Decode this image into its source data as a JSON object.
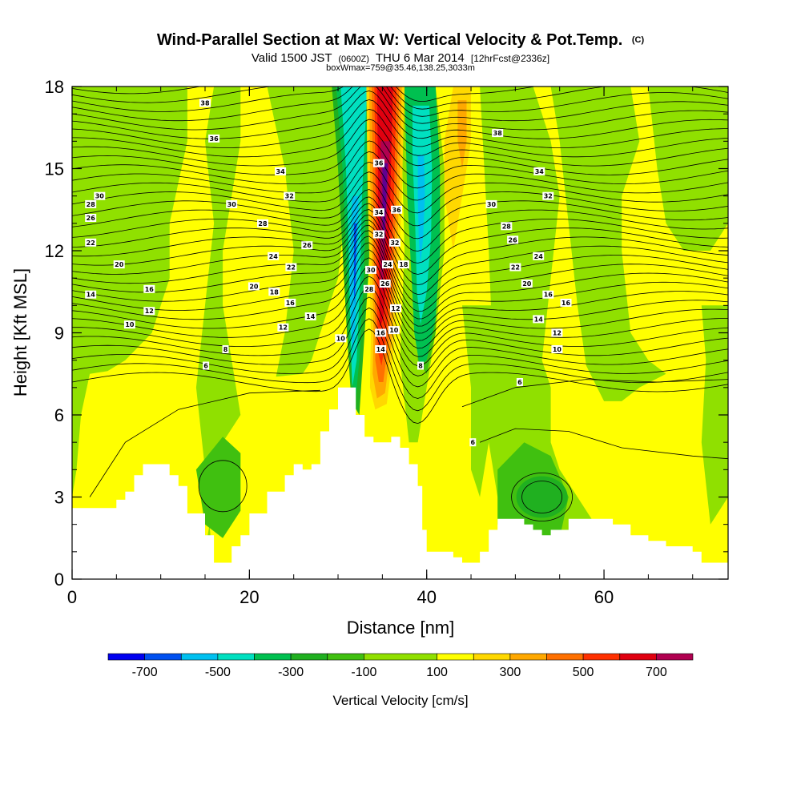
{
  "title": {
    "main": "Wind-Parallel Section at Max W: Vertical Velocity & Pot.Temp.",
    "copyright": "(C)",
    "valid_prefix": "Valid 1500 JST",
    "valid_utc": "(0600Z)",
    "valid_date": "THU 6 Mar 2014",
    "forecast": "[12hrFcst@2336z]",
    "boxline": "boxWmax=759@35.46,138.25,3033m"
  },
  "chart_data": {
    "type": "heatmap",
    "xlabel": "Distance [nm]",
    "ylabel": "Height [Kft MSL]",
    "xlim": [
      0,
      74
    ],
    "ylim": [
      0,
      18
    ],
    "x_ticks": [
      "0",
      "20",
      "40",
      "60"
    ],
    "x_tick_values": [
      0,
      20,
      40,
      60
    ],
    "y_ticks": [
      "0",
      "3",
      "6",
      "9",
      "12",
      "15",
      "18"
    ],
    "y_tick_values": [
      0,
      3,
      6,
      9,
      12,
      15,
      18
    ],
    "colorbar": {
      "title": "Vertical Velocity [cm/s]",
      "labels": [
        "-700",
        "-500",
        "-300",
        "-100",
        "100",
        "300",
        "500",
        "700"
      ],
      "label_values": [
        -700,
        -500,
        -300,
        -100,
        100,
        300,
        500,
        700
      ],
      "bounds": [
        -800,
        -700,
        -600,
        -500,
        -400,
        -300,
        -200,
        -100,
        100,
        200,
        300,
        400,
        500,
        600,
        700,
        800
      ],
      "colors": [
        "#0000f0",
        "#0050f0",
        "#00c0f0",
        "#00e0c0",
        "#00c050",
        "#20b020",
        "#40c010",
        "#90e000",
        "#ffff00",
        "#ffd800",
        "#ffa800",
        "#ff7000",
        "#ff3000",
        "#e00010",
        "#b00050",
        "#600090"
      ]
    },
    "terrain": [
      [
        0,
        2.6
      ],
      [
        3,
        2.6
      ],
      [
        5,
        2.9
      ],
      [
        6,
        3.2
      ],
      [
        7,
        3.8
      ],
      [
        8,
        4.2
      ],
      [
        9,
        4.2
      ],
      [
        10,
        4.2
      ],
      [
        11,
        3.8
      ],
      [
        12,
        3.4
      ],
      [
        13,
        2.4
      ],
      [
        15,
        1.6
      ],
      [
        16,
        0.6
      ],
      [
        17,
        0.6
      ],
      [
        18,
        1.2
      ],
      [
        19,
        1.6
      ],
      [
        20,
        2.4
      ],
      [
        22,
        3.2
      ],
      [
        24,
        3.8
      ],
      [
        25,
        4.2
      ],
      [
        26,
        4.0
      ],
      [
        27,
        4.2
      ],
      [
        28,
        5.4
      ],
      [
        29,
        6.2
      ],
      [
        30,
        7.0
      ],
      [
        31,
        7.0
      ],
      [
        32,
        6.0
      ],
      [
        33,
        5.2
      ],
      [
        34,
        5.0
      ],
      [
        35,
        5.0
      ],
      [
        36,
        5.2
      ],
      [
        37,
        4.8
      ],
      [
        38,
        4.2
      ],
      [
        39,
        3.4
      ],
      [
        39.5,
        1.8
      ],
      [
        40,
        1.0
      ],
      [
        42,
        1.0
      ],
      [
        43,
        0.8
      ],
      [
        44,
        0.6
      ],
      [
        45,
        0.6
      ],
      [
        46,
        1.0
      ],
      [
        47,
        1.8
      ],
      [
        48,
        2.2
      ],
      [
        50,
        2.2
      ],
      [
        51,
        2.0
      ],
      [
        52,
        1.8
      ],
      [
        53,
        1.6
      ],
      [
        54,
        1.8
      ],
      [
        56,
        2.2
      ],
      [
        59,
        2.2
      ],
      [
        61,
        2.0
      ],
      [
        63,
        1.6
      ],
      [
        65,
        1.4
      ],
      [
        67,
        1.2
      ],
      [
        70,
        1.0
      ],
      [
        71,
        0.6
      ],
      [
        74,
        0.6
      ]
    ],
    "theta_levels": [
      6,
      8,
      10,
      12,
      14,
      16,
      18,
      20,
      22,
      24,
      26,
      28,
      30,
      32,
      34,
      36,
      38
    ],
    "contour_labels": [
      {
        "text": "38",
        "x": 15,
        "y": 17.4
      },
      {
        "text": "36",
        "x": 16,
        "y": 16.1
      },
      {
        "text": "34",
        "x": 23.5,
        "y": 14.9
      },
      {
        "text": "32",
        "x": 24.5,
        "y": 14.0
      },
      {
        "text": "30",
        "x": 3.1,
        "y": 14.0
      },
      {
        "text": "30",
        "x": 18,
        "y": 13.7
      },
      {
        "text": "28",
        "x": 2.1,
        "y": 13.7
      },
      {
        "text": "26",
        "x": 2.1,
        "y": 13.2
      },
      {
        "text": "28",
        "x": 21.5,
        "y": 13.0
      },
      {
        "text": "22",
        "x": 2.1,
        "y": 12.3
      },
      {
        "text": "26",
        "x": 26.5,
        "y": 12.2
      },
      {
        "text": "24",
        "x": 22.7,
        "y": 11.8
      },
      {
        "text": "20",
        "x": 5.3,
        "y": 11.5
      },
      {
        "text": "22",
        "x": 24.7,
        "y": 11.4
      },
      {
        "text": "20",
        "x": 20.5,
        "y": 10.7
      },
      {
        "text": "16",
        "x": 8.7,
        "y": 10.6
      },
      {
        "text": "18",
        "x": 22.8,
        "y": 10.5
      },
      {
        "text": "14",
        "x": 2.1,
        "y": 10.4
      },
      {
        "text": "16",
        "x": 24.6,
        "y": 10.1
      },
      {
        "text": "12",
        "x": 8.7,
        "y": 9.8
      },
      {
        "text": "14",
        "x": 26.9,
        "y": 9.6
      },
      {
        "text": "10",
        "x": 6.5,
        "y": 9.3
      },
      {
        "text": "12",
        "x": 23.8,
        "y": 9.2
      },
      {
        "text": "10",
        "x": 30.3,
        "y": 8.8
      },
      {
        "text": "8",
        "x": 17.3,
        "y": 8.4
      },
      {
        "text": "6",
        "x": 15.1,
        "y": 7.8
      },
      {
        "text": "36",
        "x": 34.6,
        "y": 15.2
      },
      {
        "text": "34",
        "x": 34.6,
        "y": 13.4
      },
      {
        "text": "36",
        "x": 36.6,
        "y": 13.5
      },
      {
        "text": "32",
        "x": 34.6,
        "y": 12.6
      },
      {
        "text": "32",
        "x": 36.4,
        "y": 12.3
      },
      {
        "text": "30",
        "x": 33.7,
        "y": 11.3
      },
      {
        "text": "24",
        "x": 35.6,
        "y": 11.5
      },
      {
        "text": "18",
        "x": 37.4,
        "y": 11.5
      },
      {
        "text": "26",
        "x": 35.3,
        "y": 10.8
      },
      {
        "text": "28",
        "x": 33.5,
        "y": 10.6
      },
      {
        "text": "12",
        "x": 36.5,
        "y": 9.9
      },
      {
        "text": "16",
        "x": 34.8,
        "y": 9.0
      },
      {
        "text": "10",
        "x": 36.3,
        "y": 9.1
      },
      {
        "text": "14",
        "x": 34.8,
        "y": 8.4
      },
      {
        "text": "8",
        "x": 39.3,
        "y": 7.8
      },
      {
        "text": "6",
        "x": 50.5,
        "y": 7.2
      },
      {
        "text": "6",
        "x": 45.2,
        "y": 5.0
      },
      {
        "text": "38",
        "x": 48.0,
        "y": 16.3
      },
      {
        "text": "34",
        "x": 52.7,
        "y": 14.9
      },
      {
        "text": "32",
        "x": 53.7,
        "y": 14.0
      },
      {
        "text": "30",
        "x": 47.3,
        "y": 13.7
      },
      {
        "text": "28",
        "x": 49.0,
        "y": 12.9
      },
      {
        "text": "26",
        "x": 49.7,
        "y": 12.4
      },
      {
        "text": "24",
        "x": 52.6,
        "y": 11.8
      },
      {
        "text": "22",
        "x": 50.0,
        "y": 11.4
      },
      {
        "text": "20",
        "x": 51.3,
        "y": 10.8
      },
      {
        "text": "16",
        "x": 53.7,
        "y": 10.4
      },
      {
        "text": "16",
        "x": 55.7,
        "y": 10.1
      },
      {
        "text": "14",
        "x": 52.6,
        "y": 9.5
      },
      {
        "text": "12",
        "x": 54.7,
        "y": 9.0
      },
      {
        "text": "10",
        "x": 54.7,
        "y": 8.4
      }
    ]
  }
}
